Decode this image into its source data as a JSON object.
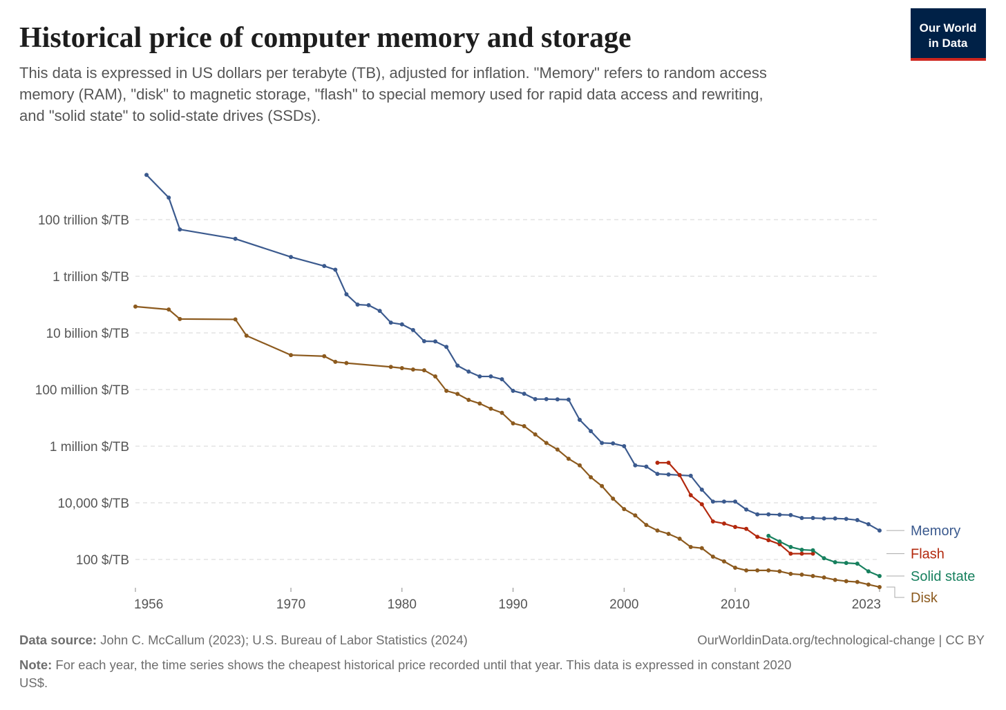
{
  "logo": [
    "Our World",
    "in Data"
  ],
  "chart_data": {
    "type": "line",
    "title": "Historical price of computer memory and storage",
    "subtitle": [
      "This data is expressed in US dollars per terabyte (TB), adjusted for inflation. \"Memory\" refers to random access",
      "memory (RAM), \"disk\" to magnetic storage, \"flash\" to special memory used for rapid data access and rewriting,",
      "and \"solid state\" to solid-state drives (SSDs)."
    ],
    "source_label": "Data source:",
    "source": "John C. McCallum (2023); U.S. Bureau of Labor Statistics (2024)",
    "url": "OurWorldinData.org/technological-change | CC BY",
    "note_label": "Note:",
    "note": [
      "For each year, the time series shows the cheapest historical price recorded until that year. This data is expressed in constant 2020",
      "US$."
    ],
    "log_y": true,
    "grid": true,
    "xlim": [
      1956,
      2023
    ],
    "xticks": [
      1956,
      1970,
      1980,
      1990,
      2000,
      2010,
      2023
    ],
    "ylim": [
      10,
      1e+16
    ],
    "yticks": [
      {
        "value": 100,
        "label": "100 $/TB"
      },
      {
        "value": 10000,
        "label": "10,000 $/TB"
      },
      {
        "value": 1000000,
        "label": "1 million $/TB"
      },
      {
        "value": 100000000,
        "label": "100 million $/TB"
      },
      {
        "value": 10000000000,
        "label": "10 billion $/TB"
      },
      {
        "value": 1000000000000,
        "label": "1 trillion $/TB"
      },
      {
        "value": 100000000000000,
        "label": "100 trillion $/TB"
      }
    ],
    "series": [
      {
        "name": "Memory",
        "color": "#3b5a8e",
        "x": [
          1957,
          1959,
          1960,
          1965,
          1970,
          1973,
          1974,
          1975,
          1976,
          1977,
          1978,
          1979,
          1980,
          1981,
          1982,
          1983,
          1984,
          1985,
          1986,
          1987,
          1988,
          1989,
          1990,
          1991,
          1992,
          1993,
          1994,
          1995,
          1996,
          1997,
          1998,
          1999,
          2000,
          2001,
          2002,
          2003,
          2004,
          2005,
          2006,
          2007,
          2008,
          2009,
          2010,
          2011,
          2012,
          2013,
          2014,
          2015,
          2016,
          2017,
          2018,
          2019,
          2020,
          2021,
          2022,
          2023
        ],
        "values": [
          3800000000000000.0,
          600000000000000.0,
          45000000000000.0,
          21000000000000.0,
          4800000000000.0,
          2300000000000.0,
          1700000000000.0,
          230000000000.0,
          100000000000.0,
          95000000000.0,
          60000000000.0,
          23000000000.0,
          20000000000.0,
          12600000000.0,
          5100000000.0,
          5000000000.0,
          3200000000.0,
          700000000.0,
          430000000.0,
          290000000.0,
          290000000.0,
          230000000.0,
          90000000.0,
          71000000.0,
          46000000.0,
          46000000.0,
          45000000.0,
          44000000.0,
          8500000.0,
          3400000.0,
          1300000.0,
          1250000.0,
          1000000.0,
          210000.0,
          190000.0,
          105000.0,
          100000.0,
          95000.0,
          90000.0,
          29000.0,
          11000.0,
          11000.0,
          11000.0,
          5800,
          3900,
          3900,
          3800,
          3700,
          2900,
          2900,
          2800,
          2800,
          2700,
          2450,
          1750,
          1050
        ]
      },
      {
        "name": "Flash",
        "color": "#b3290e",
        "x": [
          2003,
          2004,
          2005,
          2006,
          2007,
          2008,
          2009,
          2010,
          2011,
          2012,
          2013,
          2014,
          2015,
          2016,
          2017
        ],
        "values": [
          260000.0,
          260000.0,
          95000.0,
          18500.0,
          8900,
          2200,
          1850,
          1400,
          1200,
          630,
          480,
          345,
          160,
          160,
          160
        ]
      },
      {
        "name": "Solid state",
        "color": "#17805e",
        "x": [
          2013,
          2014,
          2015,
          2016,
          2017,
          2018,
          2019,
          2020,
          2021,
          2022,
          2023
        ],
        "values": [
          680,
          430,
          275,
          220,
          210,
          110,
          80,
          75,
          71,
          38,
          26
        ]
      },
      {
        "name": "Disk",
        "color": "#8c5a1e",
        "x": [
          1956,
          1959,
          1960,
          1965,
          1966,
          1970,
          1973,
          1974,
          1975,
          1979,
          1980,
          1981,
          1982,
          1983,
          1984,
          1985,
          1986,
          1987,
          1988,
          1989,
          1990,
          1991,
          1992,
          1993,
          1994,
          1995,
          1996,
          1997,
          1998,
          1999,
          2000,
          2001,
          2002,
          2003,
          2004,
          2005,
          2006,
          2007,
          2008,
          2009,
          2010,
          2011,
          2012,
          2013,
          2014,
          2015,
          2016,
          2017,
          2018,
          2019,
          2020,
          2021,
          2022,
          2023
        ],
        "values": [
          85000000000.0,
          67000000000.0,
          31000000000.0,
          30000000000.0,
          8000000000.0,
          1650000000.0,
          1500000000.0,
          950000000.0,
          860000000.0,
          630000000.0,
          570000000.0,
          510000000.0,
          480000000.0,
          290000000.0,
          90000000.0,
          70000000.0,
          43000000.0,
          32000000.0,
          21000000.0,
          15000000.0,
          6400000.0,
          5100000.0,
          2600000.0,
          1300000.0,
          760000.0,
          360000.0,
          210000.0,
          80000.0,
          39000.0,
          14000.0,
          6000,
          3600,
          1650,
          1050,
          800,
          540,
          275,
          250,
          125,
          85,
          51,
          41,
          41,
          41,
          38,
          31,
          29,
          26,
          23,
          19,
          17,
          16,
          13,
          10.6
        ]
      }
    ]
  }
}
